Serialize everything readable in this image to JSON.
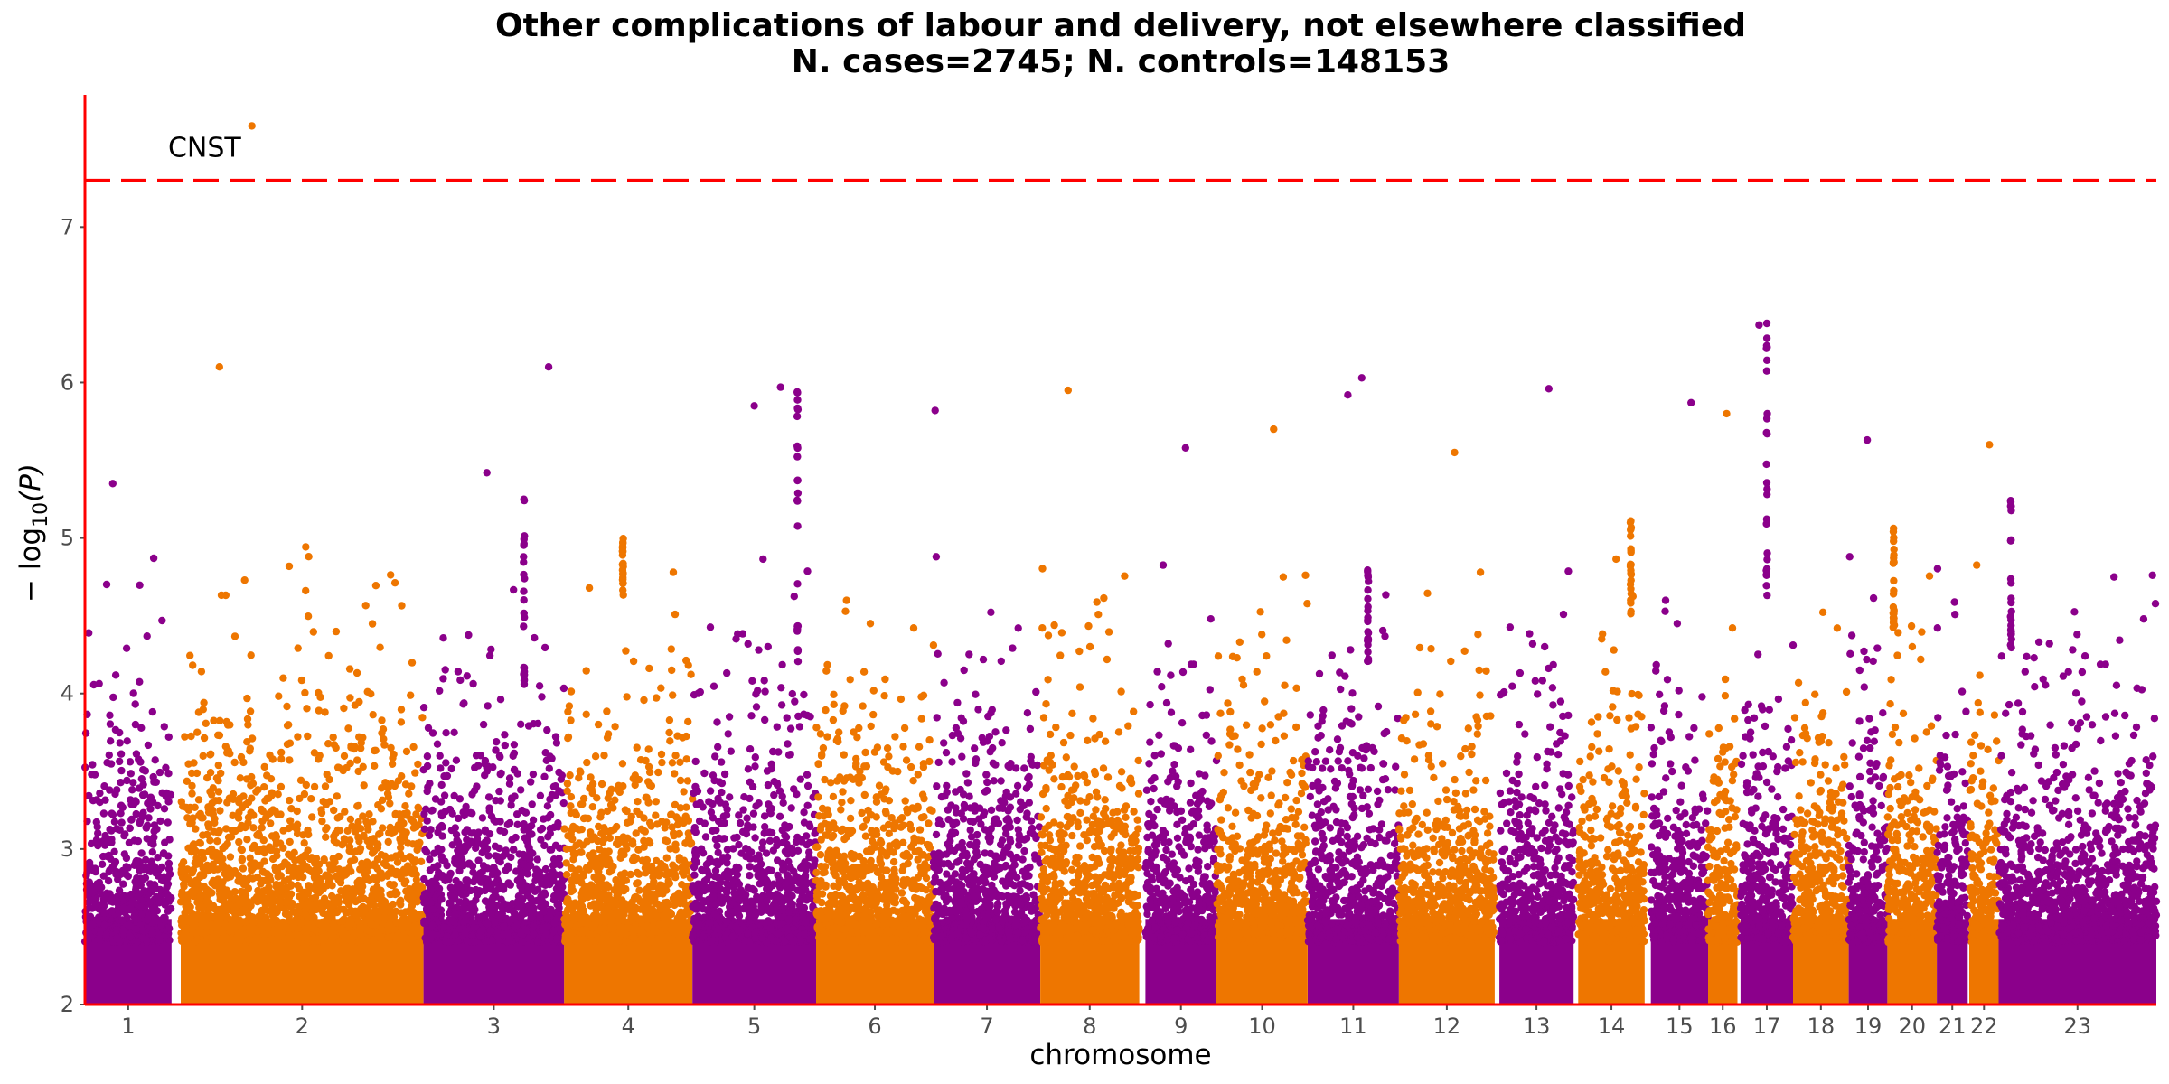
{
  "chart_data": {
    "type": "scatter",
    "title": "Other complications of labour and delivery, not elsewhere classified",
    "subtitle": "N. cases=2745; N. controls=148153",
    "xlabel": "chromosome",
    "ylabel_main": "− log",
    "ylabel_sub": "10",
    "ylabel_tail": "(P)",
    "ylim": [
      2,
      7.85
    ],
    "yticks": [
      2,
      3,
      4,
      5,
      6,
      7
    ],
    "significance_line": 7.3,
    "colors": {
      "odd": "#8b008b",
      "even": "#ee7600",
      "threshold": "#ff0000",
      "axis": "#ff0000"
    },
    "chromosomes": [
      {
        "label": "1",
        "start": 0,
        "end": 56
      },
      {
        "label": "2",
        "start": 62,
        "end": 219
      },
      {
        "label": "3",
        "start": 219,
        "end": 310
      },
      {
        "label": "4",
        "start": 310,
        "end": 393
      },
      {
        "label": "5",
        "start": 393,
        "end": 473
      },
      {
        "label": "6",
        "start": 473,
        "end": 549
      },
      {
        "label": "7",
        "start": 549,
        "end": 618
      },
      {
        "label": "8",
        "start": 618,
        "end": 682
      },
      {
        "label": "9",
        "start": 686,
        "end": 732
      },
      {
        "label": "10",
        "start": 732,
        "end": 791
      },
      {
        "label": "11",
        "start": 791,
        "end": 850
      },
      {
        "label": "12",
        "start": 850,
        "end": 912
      },
      {
        "label": "13",
        "start": 915,
        "end": 963
      },
      {
        "label": "14",
        "start": 966,
        "end": 1009
      },
      {
        "label": "15",
        "start": 1013,
        "end": 1050
      },
      {
        "label": "16",
        "start": 1050,
        "end": 1069
      },
      {
        "label": "17",
        "start": 1071,
        "end": 1105
      },
      {
        "label": "18",
        "start": 1105,
        "end": 1141
      },
      {
        "label": "19",
        "start": 1141,
        "end": 1166
      },
      {
        "label": "20",
        "start": 1166,
        "end": 1198
      },
      {
        "label": "21",
        "start": 1198,
        "end": 1218
      },
      {
        "label": "22",
        "start": 1219,
        "end": 1238
      },
      {
        "label": "23",
        "start": 1238,
        "end": 1340
      }
    ],
    "notable_points": [
      {
        "x": 108,
        "y": 7.65
      },
      {
        "x": 87,
        "y": 6.1
      },
      {
        "x": 300,
        "y": 6.1
      },
      {
        "x": 433,
        "y": 5.85
      },
      {
        "x": 450,
        "y": 5.97
      },
      {
        "x": 550,
        "y": 5.82
      },
      {
        "x": 636,
        "y": 5.95
      },
      {
        "x": 712,
        "y": 5.58
      },
      {
        "x": 769,
        "y": 5.7
      },
      {
        "x": 826,
        "y": 6.03
      },
      {
        "x": 817,
        "y": 5.92
      },
      {
        "x": 886,
        "y": 5.55
      },
      {
        "x": 947,
        "y": 5.96
      },
      {
        "x": 1039,
        "y": 5.87
      },
      {
        "x": 1062,
        "y": 5.8
      },
      {
        "x": 1083,
        "y": 6.37
      },
      {
        "x": 1088,
        "y": 6.38
      },
      {
        "x": 1153,
        "y": 5.63
      },
      {
        "x": 1232,
        "y": 5.6
      },
      {
        "x": 260,
        "y": 5.42
      },
      {
        "x": 18,
        "y": 5.35
      }
    ],
    "peak_columns": [
      {
        "x": 461,
        "from": 4.2,
        "to": 6.0
      },
      {
        "x": 284,
        "from": 4.0,
        "to": 5.4
      },
      {
        "x": 1088,
        "from": 4.5,
        "to": 6.38
      },
      {
        "x": 830,
        "from": 4.2,
        "to": 4.9
      },
      {
        "x": 1246,
        "from": 4.2,
        "to": 5.28
      },
      {
        "x": 348,
        "from": 4.6,
        "to": 5.0
      },
      {
        "x": 1000,
        "from": 4.5,
        "to": 5.2
      },
      {
        "x": 1170,
        "from": 4.4,
        "to": 5.1
      }
    ],
    "annotations": [
      {
        "text": "CNST",
        "x": 108,
        "y": 7.65
      }
    ]
  }
}
